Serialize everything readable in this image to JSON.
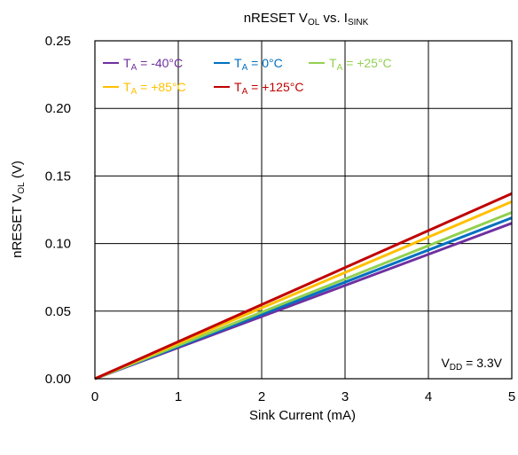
{
  "chart_data": {
    "type": "line",
    "title": {
      "main": "nRESET V",
      "sub1": "OL",
      "mid": " vs. I",
      "sub2": "SINK"
    },
    "xlabel": "Sink Current (mA)",
    "ylabel": {
      "main": "nRESET V",
      "sub": "OL",
      "unit": " (V)"
    },
    "xlim": [
      0,
      5
    ],
    "ylim": [
      0,
      0.25
    ],
    "x_ticks": [
      0,
      1,
      2,
      3,
      4,
      5
    ],
    "x_tick_labels": [
      "0",
      "1",
      "2",
      "3",
      "4",
      "5"
    ],
    "y_ticks": [
      0,
      0.05,
      0.1,
      0.15,
      0.2,
      0.25
    ],
    "y_tick_labels": [
      "0.00",
      "0.05",
      "0.10",
      "0.15",
      "0.20",
      "0.25"
    ],
    "grid": true,
    "legend_position": "top-left",
    "annotation": {
      "main": "V",
      "sub": "DD",
      "rest": " = 3.3V"
    },
    "series": [
      {
        "name": "-40°C",
        "legend_label": {
          "main": "T",
          "sub": "A",
          "rest": " = -40°C"
        },
        "color": "#7030a0",
        "x": [
          0,
          5
        ],
        "y": [
          0,
          0.115
        ]
      },
      {
        "name": "0°C",
        "legend_label": {
          "main": "T",
          "sub": "A",
          "rest": " = 0°C"
        },
        "color": "#0070c0",
        "x": [
          0,
          5
        ],
        "y": [
          0,
          0.119
        ]
      },
      {
        "name": "+25°C",
        "legend_label": {
          "main": "T",
          "sub": "A",
          "rest": " = +25°C"
        },
        "color": "#92d050",
        "x": [
          0,
          5
        ],
        "y": [
          0,
          0.123
        ]
      },
      {
        "name": "+85°C",
        "legend_label": {
          "main": "T",
          "sub": "A",
          "rest": " = +85°C"
        },
        "color": "#ffc000",
        "x": [
          0,
          5
        ],
        "y": [
          0,
          0.131
        ]
      },
      {
        "name": "+125°C",
        "legend_label": {
          "main": "T",
          "sub": "A",
          "rest": " = +125°C"
        },
        "color": "#c00000",
        "x": [
          0,
          5
        ],
        "y": [
          0,
          0.137
        ]
      }
    ]
  }
}
